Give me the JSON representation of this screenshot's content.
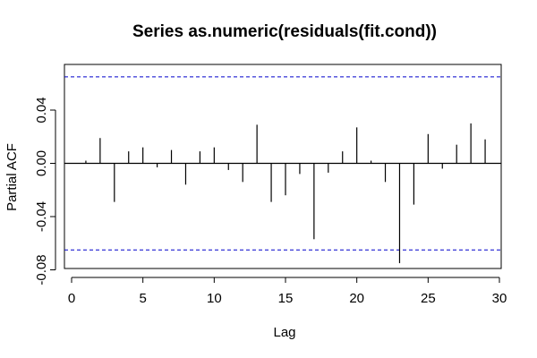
{
  "chart_data": {
    "type": "bar",
    "title": "Series  as.numeric(residuals(fit.cond))",
    "xlabel": "Lag",
    "ylabel": "Partial ACF",
    "xlim": [
      0,
      30
    ],
    "ylim": [
      -0.085,
      0.075
    ],
    "x_ticks": [
      0,
      5,
      10,
      15,
      20,
      25,
      30
    ],
    "y_ticks": [
      -0.08,
      -0.04,
      0.0,
      0.04
    ],
    "y_tick_labels": [
      "-0.08",
      "-0.04",
      "0.00",
      "0.04"
    ],
    "confidence_bound": 0.065,
    "bound_color": "#0000cc",
    "grid": false,
    "legend": "none",
    "series": [
      {
        "lags": [
          1,
          2,
          3,
          4,
          5,
          6,
          7,
          8,
          9,
          10,
          11,
          12,
          13,
          14,
          15,
          16,
          17,
          18,
          19,
          20,
          21,
          22,
          23,
          24,
          25,
          26,
          27,
          28,
          29
        ],
        "values": [
          0.002,
          0.019,
          -0.029,
          0.009,
          0.012,
          -0.003,
          0.01,
          -0.016,
          0.009,
          0.012,
          -0.005,
          -0.014,
          0.029,
          -0.029,
          -0.024,
          -0.008,
          -0.057,
          -0.007,
          0.009,
          0.027,
          0.002,
          -0.014,
          -0.075,
          -0.031,
          0.022,
          -0.004,
          0.014,
          0.03,
          0.018
        ]
      }
    ]
  }
}
